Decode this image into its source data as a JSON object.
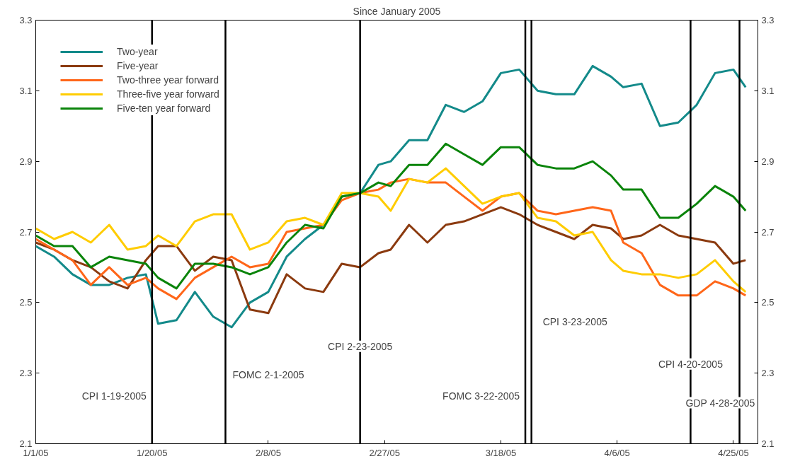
{
  "chart_data": {
    "type": "line",
    "title": "Since January 2005",
    "x": [
      "2005-01-01",
      "2005-01-04",
      "2005-01-07",
      "2005-01-10",
      "2005-01-13",
      "2005-01-16",
      "2005-01-19",
      "2005-01-21",
      "2005-01-24",
      "2005-01-27",
      "2005-01-30",
      "2005-02-02",
      "2005-02-05",
      "2005-02-08",
      "2005-02-11",
      "2005-02-14",
      "2005-02-17",
      "2005-02-20",
      "2005-02-23",
      "2005-02-26",
      "2005-02-28",
      "2005-03-03",
      "2005-03-06",
      "2005-03-09",
      "2005-03-12",
      "2005-03-15",
      "2005-03-18",
      "2005-03-21",
      "2005-03-24",
      "2005-03-27",
      "2005-03-30",
      "2005-04-02",
      "2005-04-05",
      "2005-04-07",
      "2005-04-10",
      "2005-04-13",
      "2005-04-16",
      "2005-04-19",
      "2005-04-22",
      "2005-04-25",
      "2005-04-27"
    ],
    "series": [
      {
        "name": "Two-year",
        "color": "#138a8a",
        "values": [
          2.66,
          2.63,
          2.58,
          2.55,
          2.55,
          2.57,
          2.58,
          2.44,
          2.45,
          2.53,
          2.46,
          2.43,
          2.5,
          2.53,
          2.63,
          2.68,
          2.72,
          2.8,
          2.81,
          2.89,
          2.9,
          2.96,
          2.96,
          3.06,
          3.04,
          3.07,
          3.15,
          3.16,
          3.1,
          3.09,
          3.09,
          3.17,
          3.14,
          3.11,
          3.12,
          3.0,
          3.01,
          3.06,
          3.15,
          3.16,
          3.11
        ]
      },
      {
        "name": "Five-year",
        "color": "#8b3a0f",
        "values": [
          2.67,
          2.65,
          2.62,
          2.6,
          2.56,
          2.54,
          2.62,
          2.66,
          2.66,
          2.59,
          2.63,
          2.62,
          2.48,
          2.47,
          2.58,
          2.54,
          2.53,
          2.61,
          2.6,
          2.64,
          2.65,
          2.72,
          2.67,
          2.72,
          2.73,
          2.75,
          2.77,
          2.75,
          2.72,
          2.7,
          2.68,
          2.72,
          2.71,
          2.68,
          2.69,
          2.72,
          2.69,
          2.68,
          2.67,
          2.61,
          2.62
        ]
      },
      {
        "name": "Two-three year forward",
        "color": "#ff6619",
        "values": [
          2.68,
          2.65,
          2.62,
          2.55,
          2.6,
          2.55,
          2.57,
          2.54,
          2.51,
          2.57,
          2.6,
          2.63,
          2.6,
          2.61,
          2.7,
          2.71,
          2.72,
          2.79,
          2.81,
          2.82,
          2.84,
          2.85,
          2.84,
          2.84,
          2.8,
          2.76,
          2.8,
          2.81,
          2.76,
          2.75,
          2.76,
          2.77,
          2.76,
          2.67,
          2.64,
          2.55,
          2.52,
          2.52,
          2.56,
          2.54,
          2.52
        ]
      },
      {
        "name": "Three-five year forward",
        "color": "#ffcc00",
        "values": [
          2.71,
          2.68,
          2.7,
          2.67,
          2.72,
          2.65,
          2.66,
          2.69,
          2.66,
          2.73,
          2.75,
          2.75,
          2.65,
          2.67,
          2.73,
          2.74,
          2.72,
          2.81,
          2.81,
          2.8,
          2.76,
          2.85,
          2.84,
          2.88,
          2.83,
          2.78,
          2.8,
          2.81,
          2.74,
          2.73,
          2.69,
          2.7,
          2.62,
          2.59,
          2.58,
          2.58,
          2.57,
          2.58,
          2.62,
          2.56,
          2.53
        ]
      },
      {
        "name": "Five-ten year forward",
        "color": "#0a840a",
        "values": [
          2.69,
          2.66,
          2.66,
          2.6,
          2.63,
          2.62,
          2.61,
          2.57,
          2.54,
          2.61,
          2.61,
          2.6,
          2.58,
          2.6,
          2.67,
          2.72,
          2.71,
          2.8,
          2.81,
          2.84,
          2.83,
          2.89,
          2.89,
          2.95,
          2.92,
          2.89,
          2.94,
          2.94,
          2.89,
          2.88,
          2.88,
          2.9,
          2.86,
          2.82,
          2.82,
          2.74,
          2.74,
          2.78,
          2.83,
          2.8,
          2.76
        ]
      }
    ],
    "xlim": [
      "2005-01-01",
      "2005-04-29"
    ],
    "xticks": [
      {
        "value": "2005-01-01",
        "label": "1/1/05"
      },
      {
        "value": "2005-01-20",
        "label": "1/20/05"
      },
      {
        "value": "2005-02-08",
        "label": "2/8/05"
      },
      {
        "value": "2005-02-27",
        "label": "2/27/05"
      },
      {
        "value": "2005-03-18",
        "label": "3/18/05"
      },
      {
        "value": "2005-04-06",
        "label": "4/6/05"
      },
      {
        "value": "2005-04-25",
        "label": "4/25/05"
      }
    ],
    "ylim": [
      2.1,
      3.3
    ],
    "yticks": [
      2.1,
      2.3,
      2.5,
      2.7,
      2.9,
      3.1,
      3.3
    ],
    "y2lim": [
      2.1,
      3.3
    ],
    "y2ticks": [
      2.1,
      2.3,
      2.5,
      2.7,
      2.9,
      3.1,
      3.3
    ],
    "ref_lines": [
      {
        "axis": "x",
        "value": "2005-01-20",
        "label": "CPI 1-19-2005"
      },
      {
        "axis": "x",
        "value": "2005-02-01",
        "label": "FOMC 2-1-2005"
      },
      {
        "axis": "x",
        "value": "2005-02-23",
        "label": "CPI 2-23-2005"
      },
      {
        "axis": "x",
        "value": "2005-03-22",
        "label": "FOMC 3-22-2005"
      },
      {
        "axis": "x",
        "value": "2005-03-23",
        "label": "CPI 3-23-2005"
      },
      {
        "axis": "x",
        "value": "2005-04-18",
        "label": "CPI 4-20-2005"
      },
      {
        "axis": "x",
        "value": "2005-04-26",
        "label": "GDP 4-28-2005"
      }
    ],
    "legend": "top left",
    "grid": false,
    "line_style": "solid",
    "marker": "none"
  }
}
